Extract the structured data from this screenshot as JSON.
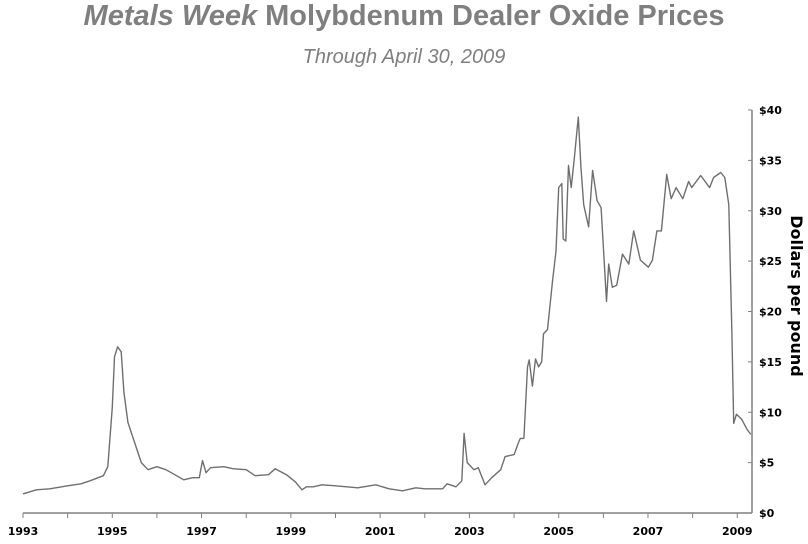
{
  "chart_data": {
    "type": "line",
    "title_italic": "Metals Week",
    "title_rest": " Molybdenum Dealer Oxide Prices",
    "subtitle": "Through April 30, 2009",
    "xlabel": "",
    "ylabel": "Dollars per pound",
    "xlim": [
      1993,
      2009.33
    ],
    "ylim": [
      0,
      40
    ],
    "x_ticks": [
      1993,
      1994,
      1995,
      1996,
      1997,
      1998,
      1999,
      2000,
      2001,
      2002,
      2003,
      2004,
      2005,
      2006,
      2007,
      2008,
      2009
    ],
    "x_tick_labels": [
      "1993",
      "1995",
      "1997",
      "1999",
      "2001",
      "2003",
      "2005",
      "2007",
      "2009"
    ],
    "y_ticks": [
      0,
      5,
      10,
      15,
      20,
      25,
      30,
      35,
      40
    ],
    "y_tick_labels": [
      "$0",
      "$5",
      "$10",
      "$15",
      "$20",
      "$25",
      "$30",
      "$35",
      "$40"
    ],
    "y_axis_side": "right",
    "grid": false,
    "line_color": "#6f6f6f",
    "series": [
      {
        "name": "Molybdenum dealer oxide price",
        "points": [
          [
            1993.0,
            1.9
          ],
          [
            1993.3,
            2.3
          ],
          [
            1993.6,
            2.4
          ],
          [
            1994.0,
            2.7
          ],
          [
            1994.3,
            2.9
          ],
          [
            1994.5,
            3.2
          ],
          [
            1994.8,
            3.7
          ],
          [
            1994.9,
            4.6
          ],
          [
            1995.0,
            10.5
          ],
          [
            1995.05,
            15.5
          ],
          [
            1995.12,
            16.5
          ],
          [
            1995.2,
            16.0
          ],
          [
            1995.26,
            12.0
          ],
          [
            1995.35,
            9.0
          ],
          [
            1995.5,
            7.0
          ],
          [
            1995.65,
            5.0
          ],
          [
            1995.8,
            4.3
          ],
          [
            1996.0,
            4.6
          ],
          [
            1996.2,
            4.3
          ],
          [
            1996.4,
            3.8
          ],
          [
            1996.6,
            3.3
          ],
          [
            1996.8,
            3.5
          ],
          [
            1996.95,
            3.5
          ],
          [
            1997.02,
            5.2
          ],
          [
            1997.1,
            4.0
          ],
          [
            1997.2,
            4.5
          ],
          [
            1997.5,
            4.6
          ],
          [
            1997.7,
            4.4
          ],
          [
            1998.0,
            4.3
          ],
          [
            1998.2,
            3.7
          ],
          [
            1998.5,
            3.8
          ],
          [
            1998.65,
            4.4
          ],
          [
            1998.9,
            3.8
          ],
          [
            1999.1,
            3.1
          ],
          [
            1999.25,
            2.3
          ],
          [
            1999.35,
            2.6
          ],
          [
            1999.5,
            2.6
          ],
          [
            1999.7,
            2.8
          ],
          [
            2000.0,
            2.7
          ],
          [
            2000.5,
            2.5
          ],
          [
            2000.9,
            2.8
          ],
          [
            2001.2,
            2.4
          ],
          [
            2001.5,
            2.2
          ],
          [
            2001.8,
            2.5
          ],
          [
            2002.0,
            2.4
          ],
          [
            2002.4,
            2.4
          ],
          [
            2002.5,
            2.9
          ],
          [
            2002.7,
            2.6
          ],
          [
            2002.83,
            3.2
          ],
          [
            2002.88,
            7.9
          ],
          [
            2002.95,
            5.0
          ],
          [
            2003.1,
            4.3
          ],
          [
            2003.2,
            4.5
          ],
          [
            2003.35,
            2.8
          ],
          [
            2003.5,
            3.5
          ],
          [
            2003.7,
            4.3
          ],
          [
            2003.8,
            5.6
          ],
          [
            2004.0,
            5.8
          ],
          [
            2004.1,
            7.0
          ],
          [
            2004.14,
            7.4
          ],
          [
            2004.22,
            7.4
          ],
          [
            2004.3,
            14.5
          ],
          [
            2004.34,
            15.2
          ],
          [
            2004.41,
            12.6
          ],
          [
            2004.48,
            15.3
          ],
          [
            2004.55,
            14.5
          ],
          [
            2004.62,
            15.0
          ],
          [
            2004.66,
            17.8
          ],
          [
            2004.75,
            18.2
          ],
          [
            2004.86,
            23.0
          ],
          [
            2004.94,
            26.0
          ],
          [
            2005.0,
            32.3
          ],
          [
            2005.07,
            32.7
          ],
          [
            2005.1,
            27.2
          ],
          [
            2005.16,
            27.0
          ],
          [
            2005.22,
            34.5
          ],
          [
            2005.28,
            32.3
          ],
          [
            2005.35,
            35.2
          ],
          [
            2005.44,
            39.3
          ],
          [
            2005.5,
            34.2
          ],
          [
            2005.56,
            30.6
          ],
          [
            2005.67,
            28.4
          ],
          [
            2005.76,
            34.0
          ],
          [
            2005.86,
            31.0
          ],
          [
            2005.95,
            30.3
          ],
          [
            2006.07,
            21.0
          ],
          [
            2006.12,
            24.7
          ],
          [
            2006.2,
            22.4
          ],
          [
            2006.3,
            22.6
          ],
          [
            2006.43,
            25.7
          ],
          [
            2006.57,
            24.7
          ],
          [
            2006.68,
            28.0
          ],
          [
            2006.83,
            25.1
          ],
          [
            2007.01,
            24.4
          ],
          [
            2007.1,
            25.1
          ],
          [
            2007.2,
            28.0
          ],
          [
            2007.3,
            28.0
          ],
          [
            2007.42,
            33.6
          ],
          [
            2007.52,
            31.2
          ],
          [
            2007.63,
            32.3
          ],
          [
            2007.78,
            31.2
          ],
          [
            2007.91,
            32.9
          ],
          [
            2007.98,
            32.3
          ],
          [
            2008.18,
            33.5
          ],
          [
            2008.38,
            32.3
          ],
          [
            2008.47,
            33.3
          ],
          [
            2008.63,
            33.8
          ],
          [
            2008.72,
            33.3
          ],
          [
            2008.81,
            30.6
          ],
          [
            2008.88,
            17.8
          ],
          [
            2008.92,
            8.9
          ],
          [
            2008.98,
            9.8
          ],
          [
            2009.1,
            9.3
          ],
          [
            2009.22,
            8.3
          ],
          [
            2009.3,
            7.8
          ]
        ]
      }
    ]
  }
}
